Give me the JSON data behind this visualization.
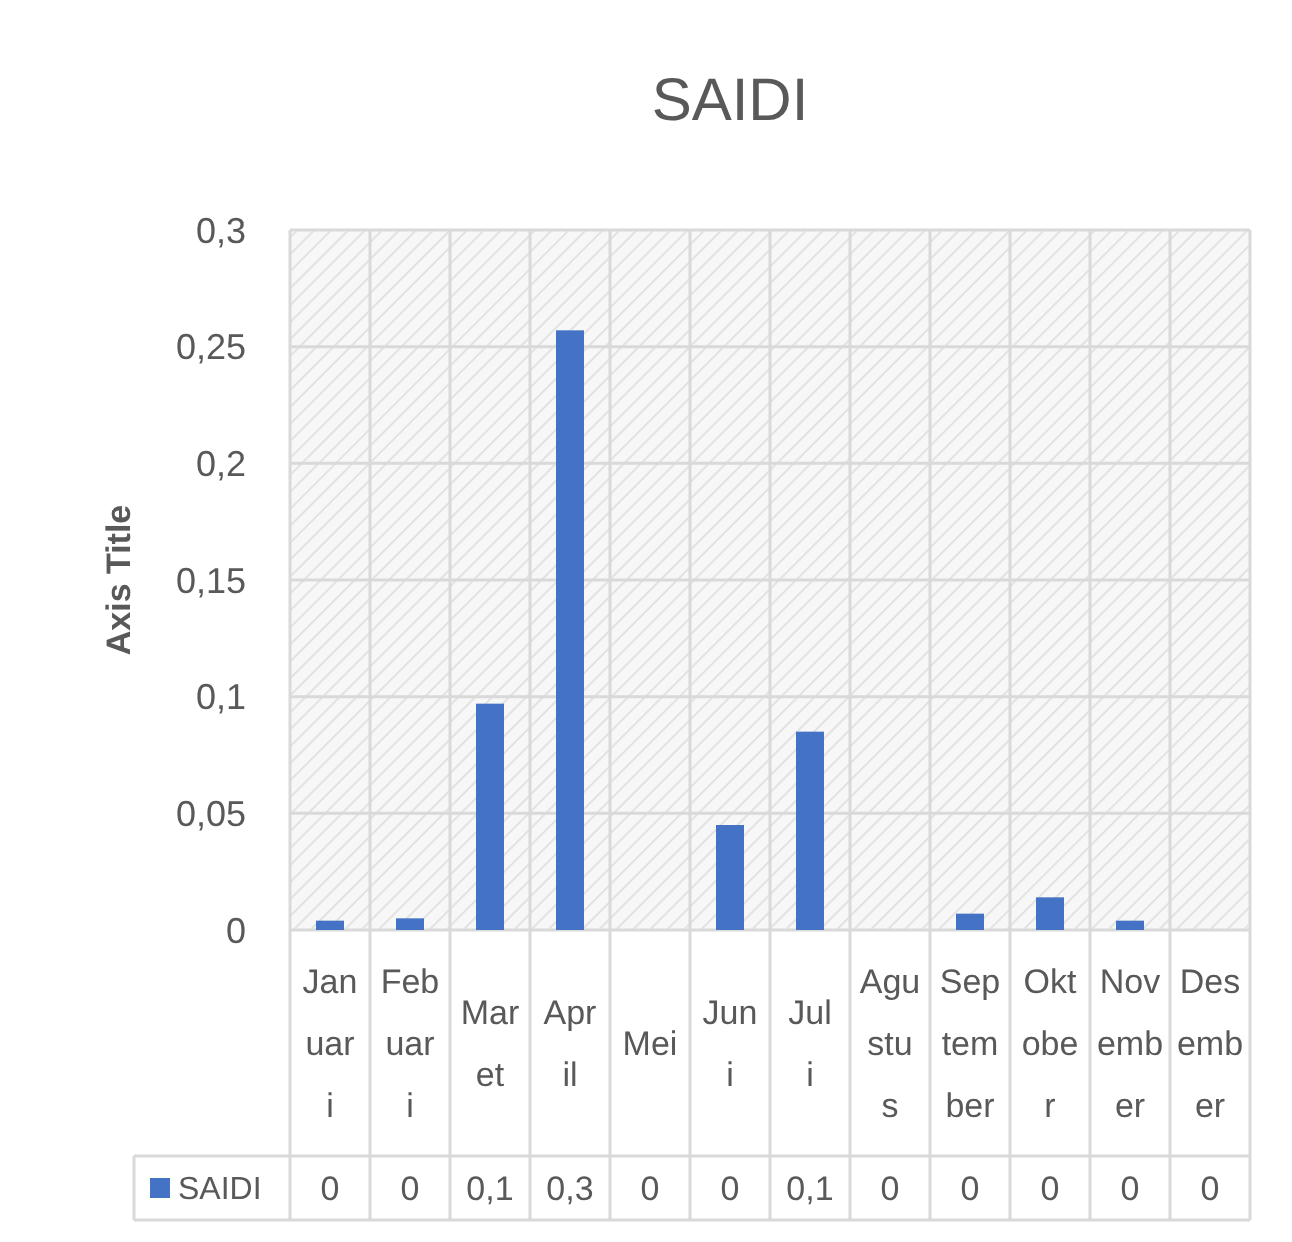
{
  "chart_data": {
    "type": "bar",
    "title": "SAIDI",
    "ylabel": "Axis Title",
    "categories": [
      "Januari",
      "Febuari",
      "Maret",
      "April",
      "Mei",
      "Juni",
      "Juli",
      "Agustus",
      "September",
      "Oktober",
      "November",
      "Desember"
    ],
    "series": [
      {
        "name": "SAIDI",
        "color": "#4472c4",
        "values": [
          0.004,
          0.005,
          0.097,
          0.257,
          0,
          0.045,
          0.085,
          0,
          0.007,
          0.014,
          0.004,
          0
        ],
        "value_labels": [
          "0",
          "0",
          "0,1",
          "0,3",
          "0",
          "0",
          "0,1",
          "0",
          "0",
          "0",
          "0",
          "0"
        ]
      }
    ],
    "ylim": [
      0,
      0.3
    ],
    "yticks": [
      0,
      {
        "value": 0.05,
        "label": "0,05"
      },
      {
        "value": 0.1,
        "label": "0,1"
      },
      {
        "value": 0.15,
        "label": "0,15"
      },
      {
        "value": 0.2,
        "label": "0,2"
      },
      {
        "value": 0.25,
        "label": "0,25"
      },
      {
        "value": 0.3,
        "label": "0,3"
      }
    ],
    "grid": true,
    "legend": "bottom"
  }
}
